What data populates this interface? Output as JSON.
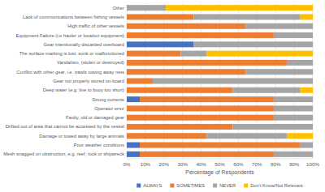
{
  "chart_data": {
    "type": "bar",
    "orientation": "horizontal",
    "stacked": true,
    "grid": true,
    "legend": "bottom",
    "x_label": "Percentage of Respondents",
    "categories": [
      "Other",
      "Lack of communications between fishing vessels",
      "High traffic of other vessels",
      "Equipment Failure (i.e hauler or location equipment)",
      "Gear intentionally discarded overboard",
      "The surface marking is lost, sunk or malfunctioned",
      "Vandalism, (stolen or destroyed)",
      "Conflict with other gear, i.e. trawls towing away nets",
      "Gear not properly stored on-board",
      "Deep water (e.g. line to buoy too short)",
      "Strong currents",
      "Operator error",
      "Faulty, old or damaged gear",
      "Drifted out of area that cannot be accessed by the vessel",
      "Damage or towed away by large animals",
      "Poor weather conditions",
      "Mesh snagged on obstruction, e.g. reef, rock or shipwreck"
    ],
    "series": [
      {
        "name": "ALWAYS",
        "color": "#4472c4",
        "values": [
          0,
          0,
          0,
          0,
          36,
          0,
          0,
          0,
          0,
          0,
          7,
          0,
          0,
          0,
          0,
          7,
          7
        ]
      },
      {
        "name": "SOMETIMES",
        "color": "#ed7d31",
        "values": [
          0,
          36,
          64,
          79,
          0,
          29,
          86,
          64,
          14,
          57,
          72,
          79,
          79,
          57,
          43,
          86,
          72
        ]
      },
      {
        "name": "NEVER",
        "color": "#a5a5a5",
        "values": [
          21,
          57,
          36,
          21,
          64,
          14,
          14,
          36,
          86,
          36,
          21,
          21,
          21,
          43,
          43,
          7,
          21
        ]
      },
      {
        "name": "Don't Know/Not Relevant",
        "color": "#ffc000",
        "values": [
          79,
          7,
          0,
          0,
          0,
          57,
          0,
          0,
          0,
          7,
          0,
          0,
          0,
          0,
          14,
          0,
          0
        ]
      }
    ],
    "xlim": [
      0,
      100
    ],
    "xticks": [
      {
        "value": 0,
        "label": "0%"
      },
      {
        "value": 10,
        "label": "10%"
      },
      {
        "value": 20,
        "label": "20%"
      },
      {
        "value": 30,
        "label": "30%"
      },
      {
        "value": 40,
        "label": "40%"
      },
      {
        "value": 50,
        "label": "50%"
      },
      {
        "value": 60,
        "label": "60%"
      },
      {
        "value": 70,
        "label": "70%"
      },
      {
        "value": 80,
        "label": "80%"
      },
      {
        "value": 90,
        "label": "90%"
      },
      {
        "value": 100,
        "label": "100%"
      }
    ]
  }
}
